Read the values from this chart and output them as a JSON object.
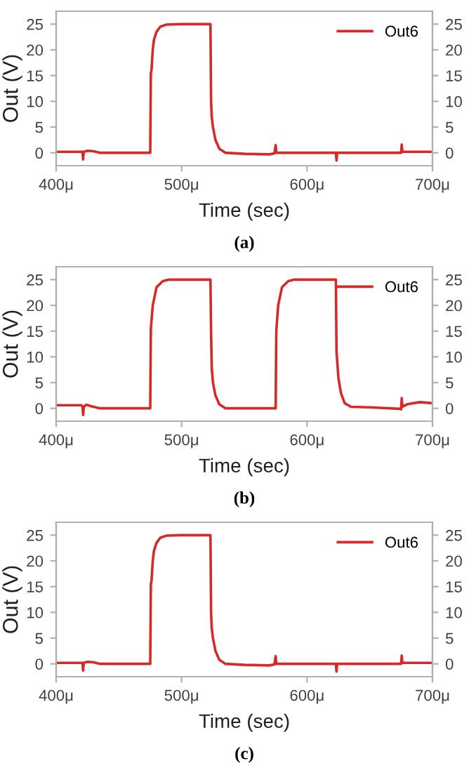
{
  "chart_data": [
    {
      "type": "line",
      "xlabel": "Time (sec)",
      "ylabel": "Out (V)",
      "annotations": [
        "(a)"
      ],
      "legend": "top right",
      "grid": false,
      "marker": "none",
      "line_style": "solid",
      "xlim": [
        400,
        700
      ],
      "xticks": [
        {
          "value": 400,
          "label": "400μ"
        },
        {
          "value": 500,
          "label": "500μ"
        },
        {
          "value": 600,
          "label": "600μ"
        },
        {
          "value": 700,
          "label": "700μ"
        }
      ],
      "ylim": [
        -2.5,
        27.5
      ],
      "yticks": [
        0,
        5,
        10,
        15,
        20,
        25
      ],
      "y2lim": [
        -2.5,
        27.5
      ],
      "y2ticks": [
        0,
        5,
        10,
        15,
        20,
        25
      ],
      "series": [
        {
          "name": "Out6",
          "color": "#d42a2a",
          "x": [
            400,
            420,
            421,
            421.5,
            422,
            425,
            430,
            435,
            475,
            475.5,
            476,
            477,
            478,
            480,
            483,
            488,
            500,
            523,
            523.5,
            524,
            525,
            527,
            530,
            535,
            550,
            570,
            574,
            575,
            575.5,
            600,
            623,
            623.5,
            624,
            675,
            675.5,
            676,
            700
          ],
          "values": [
            0.2,
            0.2,
            0.2,
            -1.3,
            0.2,
            0.4,
            0.3,
            0,
            0,
            15.5,
            16,
            20,
            22,
            23.5,
            24.5,
            24.9,
            25,
            25,
            10,
            7,
            5,
            2.5,
            0.8,
            0,
            -0.2,
            -0.3,
            -0.1,
            1.5,
            0,
            0,
            0,
            -1.5,
            0,
            0,
            1.6,
            0.2,
            0.2
          ]
        }
      ]
    },
    {
      "type": "line",
      "xlabel": "Time (sec)",
      "ylabel": "Out (V)",
      "annotations": [
        "(b)"
      ],
      "legend": "top right",
      "grid": false,
      "marker": "none",
      "line_style": "solid",
      "xlim": [
        400,
        700
      ],
      "xticks": [
        {
          "value": 400,
          "label": "400μ"
        },
        {
          "value": 500,
          "label": "500μ"
        },
        {
          "value": 600,
          "label": "600μ"
        },
        {
          "value": 700,
          "label": "700μ"
        }
      ],
      "ylim": [
        -2.5,
        27.5
      ],
      "yticks": [
        0,
        5,
        10,
        15,
        20,
        25
      ],
      "y2lim": [
        -2.5,
        27.5
      ],
      "y2ticks": [
        0,
        5,
        10,
        15,
        20,
        25
      ],
      "series": [
        {
          "name": "Out6",
          "color": "#d42a2a",
          "x": [
            400,
            420,
            421,
            421.5,
            422,
            424,
            428,
            435,
            475,
            475.5,
            477,
            480,
            485,
            490,
            523,
            523.5,
            524,
            525,
            527,
            530,
            535,
            575,
            575.5,
            577,
            580,
            585,
            590,
            623,
            623.5,
            625,
            627,
            630,
            635,
            650,
            674,
            675,
            675.5,
            676,
            680,
            690,
            700
          ],
          "values": [
            0.6,
            0.6,
            0.4,
            -1.3,
            0.3,
            0.7,
            0.4,
            0,
            0,
            15.5,
            20,
            23.5,
            24.7,
            25,
            25,
            15,
            8,
            5,
            2.5,
            0.8,
            0,
            0,
            15,
            20,
            23.5,
            24.7,
            25,
            25,
            11,
            6,
            3,
            1,
            0.3,
            0.2,
            -0.1,
            -0.2,
            2,
            0.3,
            0.8,
            1.2,
            1.0
          ]
        }
      ]
    },
    {
      "type": "line",
      "xlabel": "Time (sec)",
      "ylabel": "Out (V)",
      "annotations": [
        "(c)"
      ],
      "legend": "top right",
      "grid": false,
      "marker": "none",
      "line_style": "solid",
      "xlim": [
        400,
        700
      ],
      "xticks": [
        {
          "value": 400,
          "label": "400μ"
        },
        {
          "value": 500,
          "label": "500μ"
        },
        {
          "value": 600,
          "label": "600μ"
        },
        {
          "value": 700,
          "label": "700μ"
        }
      ],
      "ylim": [
        -2.5,
        27.5
      ],
      "yticks": [
        0,
        5,
        10,
        15,
        20,
        25
      ],
      "y2lim": [
        -2.5,
        27.5
      ],
      "y2ticks": [
        0,
        5,
        10,
        15,
        20,
        25
      ],
      "series": [
        {
          "name": "Out6",
          "color": "#d42a2a",
          "x": [
            400,
            420,
            421,
            421.5,
            422,
            425,
            430,
            435,
            475,
            475.5,
            476,
            477,
            478,
            480,
            483,
            488,
            500,
            523,
            523.5,
            524,
            525,
            527,
            530,
            535,
            550,
            570,
            574,
            575,
            575.5,
            600,
            623,
            623.5,
            624,
            675,
            675.5,
            676,
            700
          ],
          "values": [
            0.2,
            0.2,
            0.2,
            -1.3,
            0.2,
            0.4,
            0.3,
            0,
            0,
            15.5,
            16,
            20,
            22,
            23.5,
            24.5,
            24.9,
            25,
            25,
            10,
            7,
            5,
            2.5,
            0.8,
            0,
            -0.2,
            -0.3,
            -0.1,
            1.5,
            0,
            0,
            0,
            -1.5,
            0,
            0,
            1.6,
            0.2,
            0.2
          ]
        }
      ]
    }
  ]
}
